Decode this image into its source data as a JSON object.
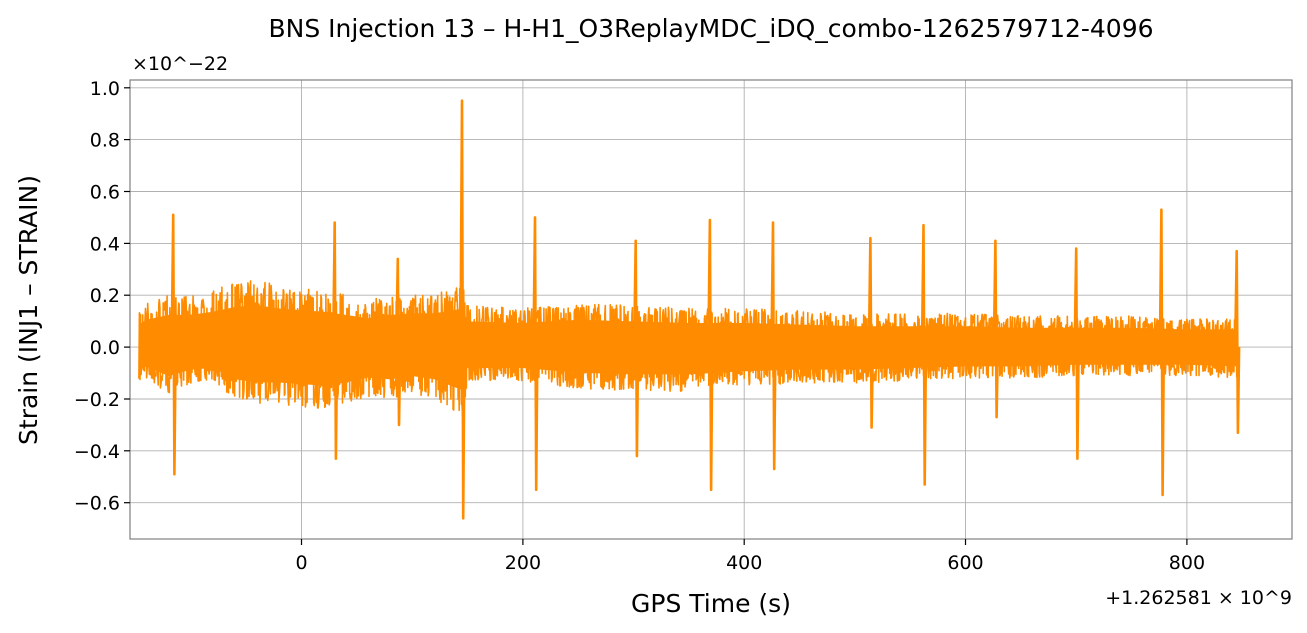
{
  "chart_data": {
    "type": "line",
    "title": "BNS Injection 13 – H-H1_O3ReplayMDC_iDQ_combo-1262579712-4096",
    "xlabel": "GPS Time (s)",
    "ylabel": "Strain (INJ1 – STRAIN)",
    "x_offset_label": "+1.262581 × 10^9",
    "y_scale_label": "×10^−22",
    "xlim": [
      -155,
      895
    ],
    "ylim": [
      -0.74,
      1.03
    ],
    "x_ticks": [
      0,
      200,
      400,
      600,
      800
    ],
    "x_tick_labels": [
      "0",
      "200",
      "400",
      "600",
      "800"
    ],
    "y_ticks": [
      -0.6,
      -0.4,
      -0.2,
      0.0,
      0.2,
      0.4,
      0.6,
      0.8,
      1.0
    ],
    "y_tick_labels": [
      "−0.6",
      "−0.4",
      "−0.2",
      "0.0",
      "0.2",
      "0.4",
      "0.6",
      "0.8",
      "1.0"
    ],
    "grid": true,
    "series": [
      {
        "color": "#ff8c00",
        "x_range": [
          -147,
          846
        ],
        "envelope": [
          [
            -147,
            0.14,
            -0.14
          ],
          [
            -140,
            0.17,
            -0.12
          ],
          [
            -120,
            0.2,
            -0.18
          ],
          [
            -100,
            0.2,
            -0.14
          ],
          [
            -80,
            0.22,
            -0.13
          ],
          [
            -60,
            0.25,
            -0.2
          ],
          [
            -40,
            0.26,
            -0.22
          ],
          [
            -20,
            0.24,
            -0.22
          ],
          [
            0,
            0.23,
            -0.23
          ],
          [
            20,
            0.22,
            -0.24
          ],
          [
            40,
            0.2,
            -0.22
          ],
          [
            60,
            0.18,
            -0.19
          ],
          [
            80,
            0.2,
            -0.2
          ],
          [
            100,
            0.21,
            -0.18
          ],
          [
            120,
            0.21,
            -0.2
          ],
          [
            146,
            0.24,
            -0.27
          ],
          [
            150,
            0.16,
            -0.13
          ],
          [
            200,
            0.15,
            -0.13
          ],
          [
            250,
            0.17,
            -0.16
          ],
          [
            300,
            0.16,
            -0.17
          ],
          [
            350,
            0.15,
            -0.17
          ],
          [
            400,
            0.15,
            -0.15
          ],
          [
            450,
            0.14,
            -0.14
          ],
          [
            500,
            0.13,
            -0.14
          ],
          [
            550,
            0.13,
            -0.13
          ],
          [
            600,
            0.13,
            -0.12
          ],
          [
            650,
            0.12,
            -0.12
          ],
          [
            700,
            0.12,
            -0.11
          ],
          [
            750,
            0.12,
            -0.11
          ],
          [
            800,
            0.11,
            -0.11
          ],
          [
            846,
            0.11,
            -0.12
          ]
        ],
        "spikes": [
          [
            -116,
            0.51,
            -0.49
          ],
          [
            30,
            0.48,
            -0.43
          ],
          [
            87,
            0.34,
            -0.3
          ],
          [
            145,
            0.95,
            -0.66
          ],
          [
            211,
            0.5,
            -0.55
          ],
          [
            302,
            0.41,
            -0.42
          ],
          [
            369,
            0.49,
            -0.55
          ],
          [
            426,
            0.48,
            -0.47
          ],
          [
            514,
            0.42,
            -0.31
          ],
          [
            562,
            0.47,
            -0.53
          ],
          [
            627,
            0.41,
            -0.27
          ],
          [
            700,
            0.38,
            -0.43
          ],
          [
            777,
            0.53,
            -0.57
          ],
          [
            845,
            0.37,
            -0.33
          ]
        ]
      }
    ]
  }
}
